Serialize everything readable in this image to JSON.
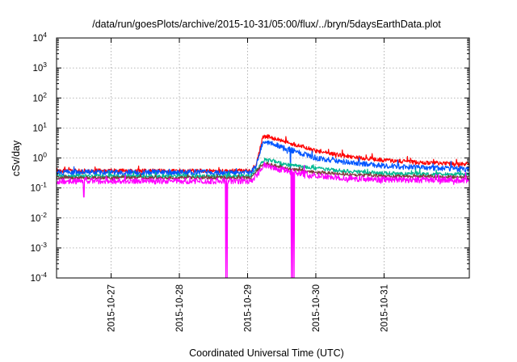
{
  "chart_data": {
    "type": "line",
    "title": "/data/run/goesPlots/archive/2015-10-31/05:00/flux/../bryn/5daysEarthData.plot",
    "xlabel": "Coordinated Universal Time (UTC)",
    "ylabel": "cSv/day",
    "yscale": "log",
    "ylim": [
      0.0001,
      10000
    ],
    "xlim": [
      -0.8,
      5.25
    ],
    "x_origin_label": "2015-10-27",
    "grid": true,
    "legend": "none",
    "y_ticks": [
      {
        "value": 0.0001,
        "base": "10",
        "exp": "-4"
      },
      {
        "value": 0.001,
        "base": "10",
        "exp": "-3"
      },
      {
        "value": 0.01,
        "base": "10",
        "exp": "-2"
      },
      {
        "value": 0.1,
        "base": "10",
        "exp": "-1"
      },
      {
        "value": 1,
        "base": "10",
        "exp": "0"
      },
      {
        "value": 10,
        "base": "10",
        "exp": "1"
      },
      {
        "value": 100,
        "base": "10",
        "exp": "2"
      },
      {
        "value": 1000,
        "base": "10",
        "exp": "3"
      },
      {
        "value": 10000,
        "base": "10",
        "exp": "4"
      }
    ],
    "x_ticks": [
      {
        "value": 0,
        "label": "2015-10-27"
      },
      {
        "value": 1,
        "label": "2015-10-28"
      },
      {
        "value": 2,
        "label": "2015-10-29"
      },
      {
        "value": 3,
        "label": "2015-10-30"
      },
      {
        "value": 4,
        "label": "2015-10-31"
      }
    ],
    "series": [
      {
        "color": "#ff0000",
        "noise": 0.07,
        "seed": 11,
        "x": [
          -0.8,
          2.05,
          2.12,
          2.18,
          2.22,
          2.3,
          2.5,
          2.8,
          3.0,
          3.5,
          4.0,
          4.5,
          5.25
        ],
        "y": [
          0.37,
          0.37,
          0.6,
          2.0,
          5.0,
          5.2,
          3.8,
          2.4,
          1.7,
          1.1,
          0.85,
          0.7,
          0.62
        ],
        "spikes": []
      },
      {
        "color": "#0055ff",
        "noise": 0.09,
        "seed": 23,
        "x": [
          -0.8,
          2.05,
          2.12,
          2.18,
          2.22,
          2.3,
          2.5,
          2.8,
          3.0,
          3.5,
          4.0,
          4.5,
          5.25
        ],
        "y": [
          0.33,
          0.33,
          0.5,
          1.5,
          3.3,
          3.4,
          2.3,
          1.4,
          1.0,
          0.7,
          0.55,
          0.48,
          0.42
        ],
        "spikes": [
          {
            "x": 2.63,
            "y": 0.3
          }
        ]
      },
      {
        "color": "#00b890",
        "noise": 0.06,
        "seed": 37,
        "x": [
          -0.8,
          2.05,
          2.15,
          2.25,
          2.4,
          2.7,
          3.0,
          3.5,
          4.0,
          5.25
        ],
        "y": [
          0.25,
          0.25,
          0.45,
          0.9,
          0.75,
          0.55,
          0.45,
          0.36,
          0.31,
          0.28
        ],
        "spikes": []
      },
      {
        "color": "#7d3c3c",
        "noise": 0.05,
        "seed": 41,
        "x": [
          -0.8,
          2.05,
          2.15,
          2.25,
          2.4,
          2.7,
          3.0,
          3.5,
          4.0,
          5.25
        ],
        "y": [
          0.22,
          0.22,
          0.4,
          0.7,
          0.55,
          0.4,
          0.33,
          0.28,
          0.25,
          0.23
        ],
        "spikes": []
      },
      {
        "color": "#ff00ff",
        "noise": 0.1,
        "seed": 53,
        "x": [
          -0.8,
          2.05,
          2.15,
          2.25,
          2.4,
          2.7,
          3.0,
          3.5,
          4.0,
          5.25
        ],
        "y": [
          0.17,
          0.17,
          0.3,
          0.6,
          0.45,
          0.32,
          0.26,
          0.21,
          0.19,
          0.18
        ],
        "spikes": [
          {
            "x": -0.4,
            "y": 0.05
          },
          {
            "x": 1.68,
            "y": 0.0001
          },
          {
            "x": 1.7,
            "y": 0.0001
          },
          {
            "x": 2.64,
            "y": 0.0001
          },
          {
            "x": 2.66,
            "y": 0.0001
          },
          {
            "x": 2.68,
            "y": 0.0001
          }
        ]
      }
    ]
  }
}
